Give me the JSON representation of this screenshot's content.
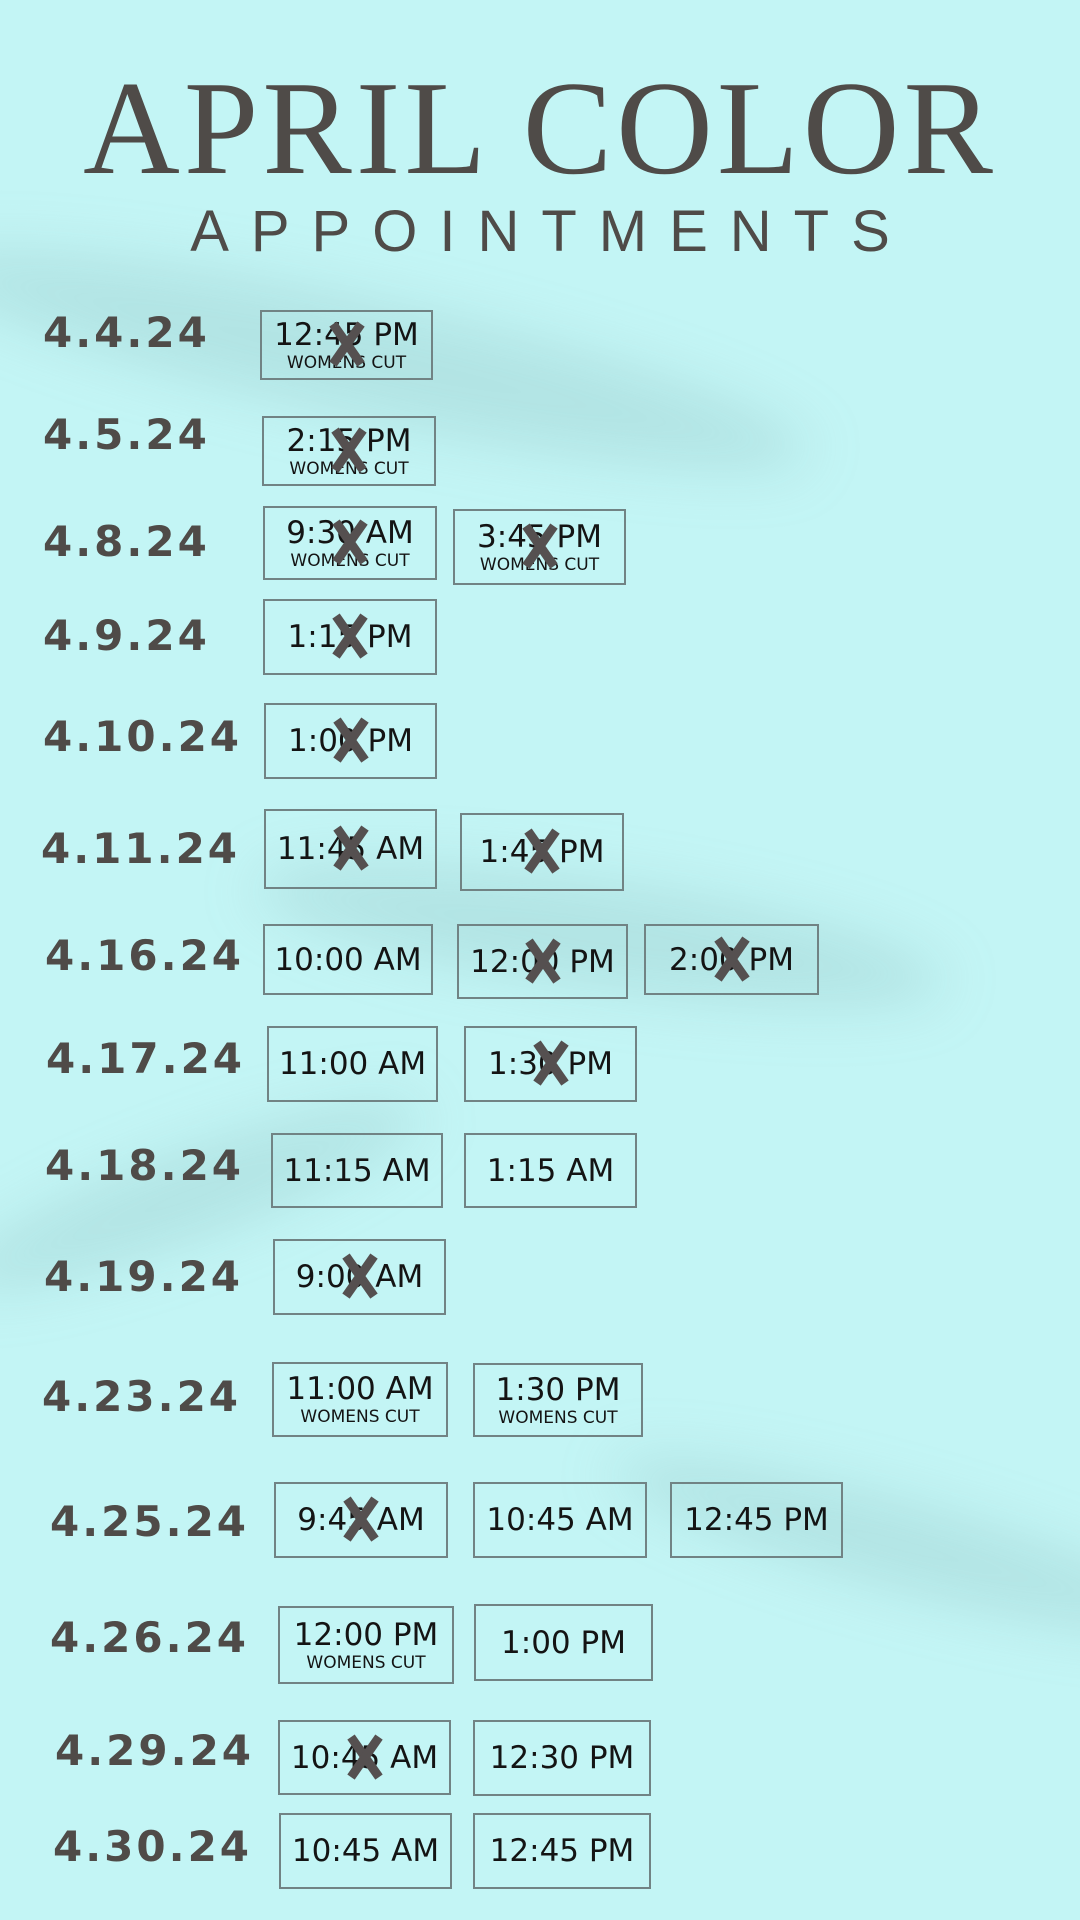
{
  "header": {
    "title": "APRIL COLOR",
    "subtitle": "APPOINTMENTS"
  },
  "colors": {
    "background": "#c3f5f5",
    "text": "#4f4b48",
    "box_border": "#718384",
    "cross": "#555050"
  },
  "booked_mark": "X",
  "rows": [
    {
      "date": "4.4.24",
      "slots": [
        {
          "time": "12:45 PM",
          "note": "WOMENS CUT",
          "booked": true
        }
      ]
    },
    {
      "date": "4.5.24",
      "slots": [
        {
          "time": "2:15 PM",
          "note": "WOMENS CUT",
          "booked": true
        }
      ]
    },
    {
      "date": "4.8.24",
      "slots": [
        {
          "time": "9:30 AM",
          "note": "WOMENS CUT",
          "booked": true
        },
        {
          "time": "3:45 PM",
          "note": "WOMENS CUT",
          "booked": true
        }
      ]
    },
    {
      "date": "4.9.24",
      "slots": [
        {
          "time": "1:15 PM",
          "booked": true
        }
      ]
    },
    {
      "date": "4.10.24",
      "slots": [
        {
          "time": "1:00 PM",
          "booked": true
        }
      ]
    },
    {
      "date": "4.11.24",
      "slots": [
        {
          "time": "11:45 AM",
          "booked": true
        },
        {
          "time": "1:45 PM",
          "booked": true
        }
      ]
    },
    {
      "date": "4.16.24",
      "slots": [
        {
          "time": "10:00 AM",
          "booked": false
        },
        {
          "time": "12:00 PM",
          "booked": true
        },
        {
          "time": "2:00 PM",
          "booked": true
        }
      ]
    },
    {
      "date": "4.17.24",
      "slots": [
        {
          "time": "11:00 AM",
          "booked": false
        },
        {
          "time": "1:30 PM",
          "booked": true
        }
      ]
    },
    {
      "date": "4.18.24",
      "slots": [
        {
          "time": "11:15 AM",
          "booked": false
        },
        {
          "time": "1:15 AM",
          "booked": false
        }
      ]
    },
    {
      "date": "4.19.24",
      "slots": [
        {
          "time": "9:00 AM",
          "booked": true
        }
      ]
    },
    {
      "date": "4.23.24",
      "slots": [
        {
          "time": "11:00 AM",
          "note": "WOMENS CUT",
          "booked": false
        },
        {
          "time": "1:30 PM",
          "note": "WOMENS CUT",
          "booked": false
        }
      ]
    },
    {
      "date": "4.25.24",
      "slots": [
        {
          "time": "9:45 AM",
          "booked": true
        },
        {
          "time": "10:45 AM",
          "booked": false
        },
        {
          "time": "12:45 PM",
          "booked": false
        }
      ]
    },
    {
      "date": "4.26.24",
      "slots": [
        {
          "time": "12:00 PM",
          "note": "WOMENS CUT",
          "booked": false
        },
        {
          "time": "1:00 PM",
          "booked": false
        }
      ]
    },
    {
      "date": "4.29.24",
      "slots": [
        {
          "time": "10:45 AM",
          "booked": true
        },
        {
          "time": "12:30 PM",
          "booked": false
        }
      ]
    },
    {
      "date": "4.30.24",
      "slots": [
        {
          "time": "10:45 AM",
          "booked": false
        },
        {
          "time": "12:45 PM",
          "booked": false
        }
      ]
    }
  ]
}
